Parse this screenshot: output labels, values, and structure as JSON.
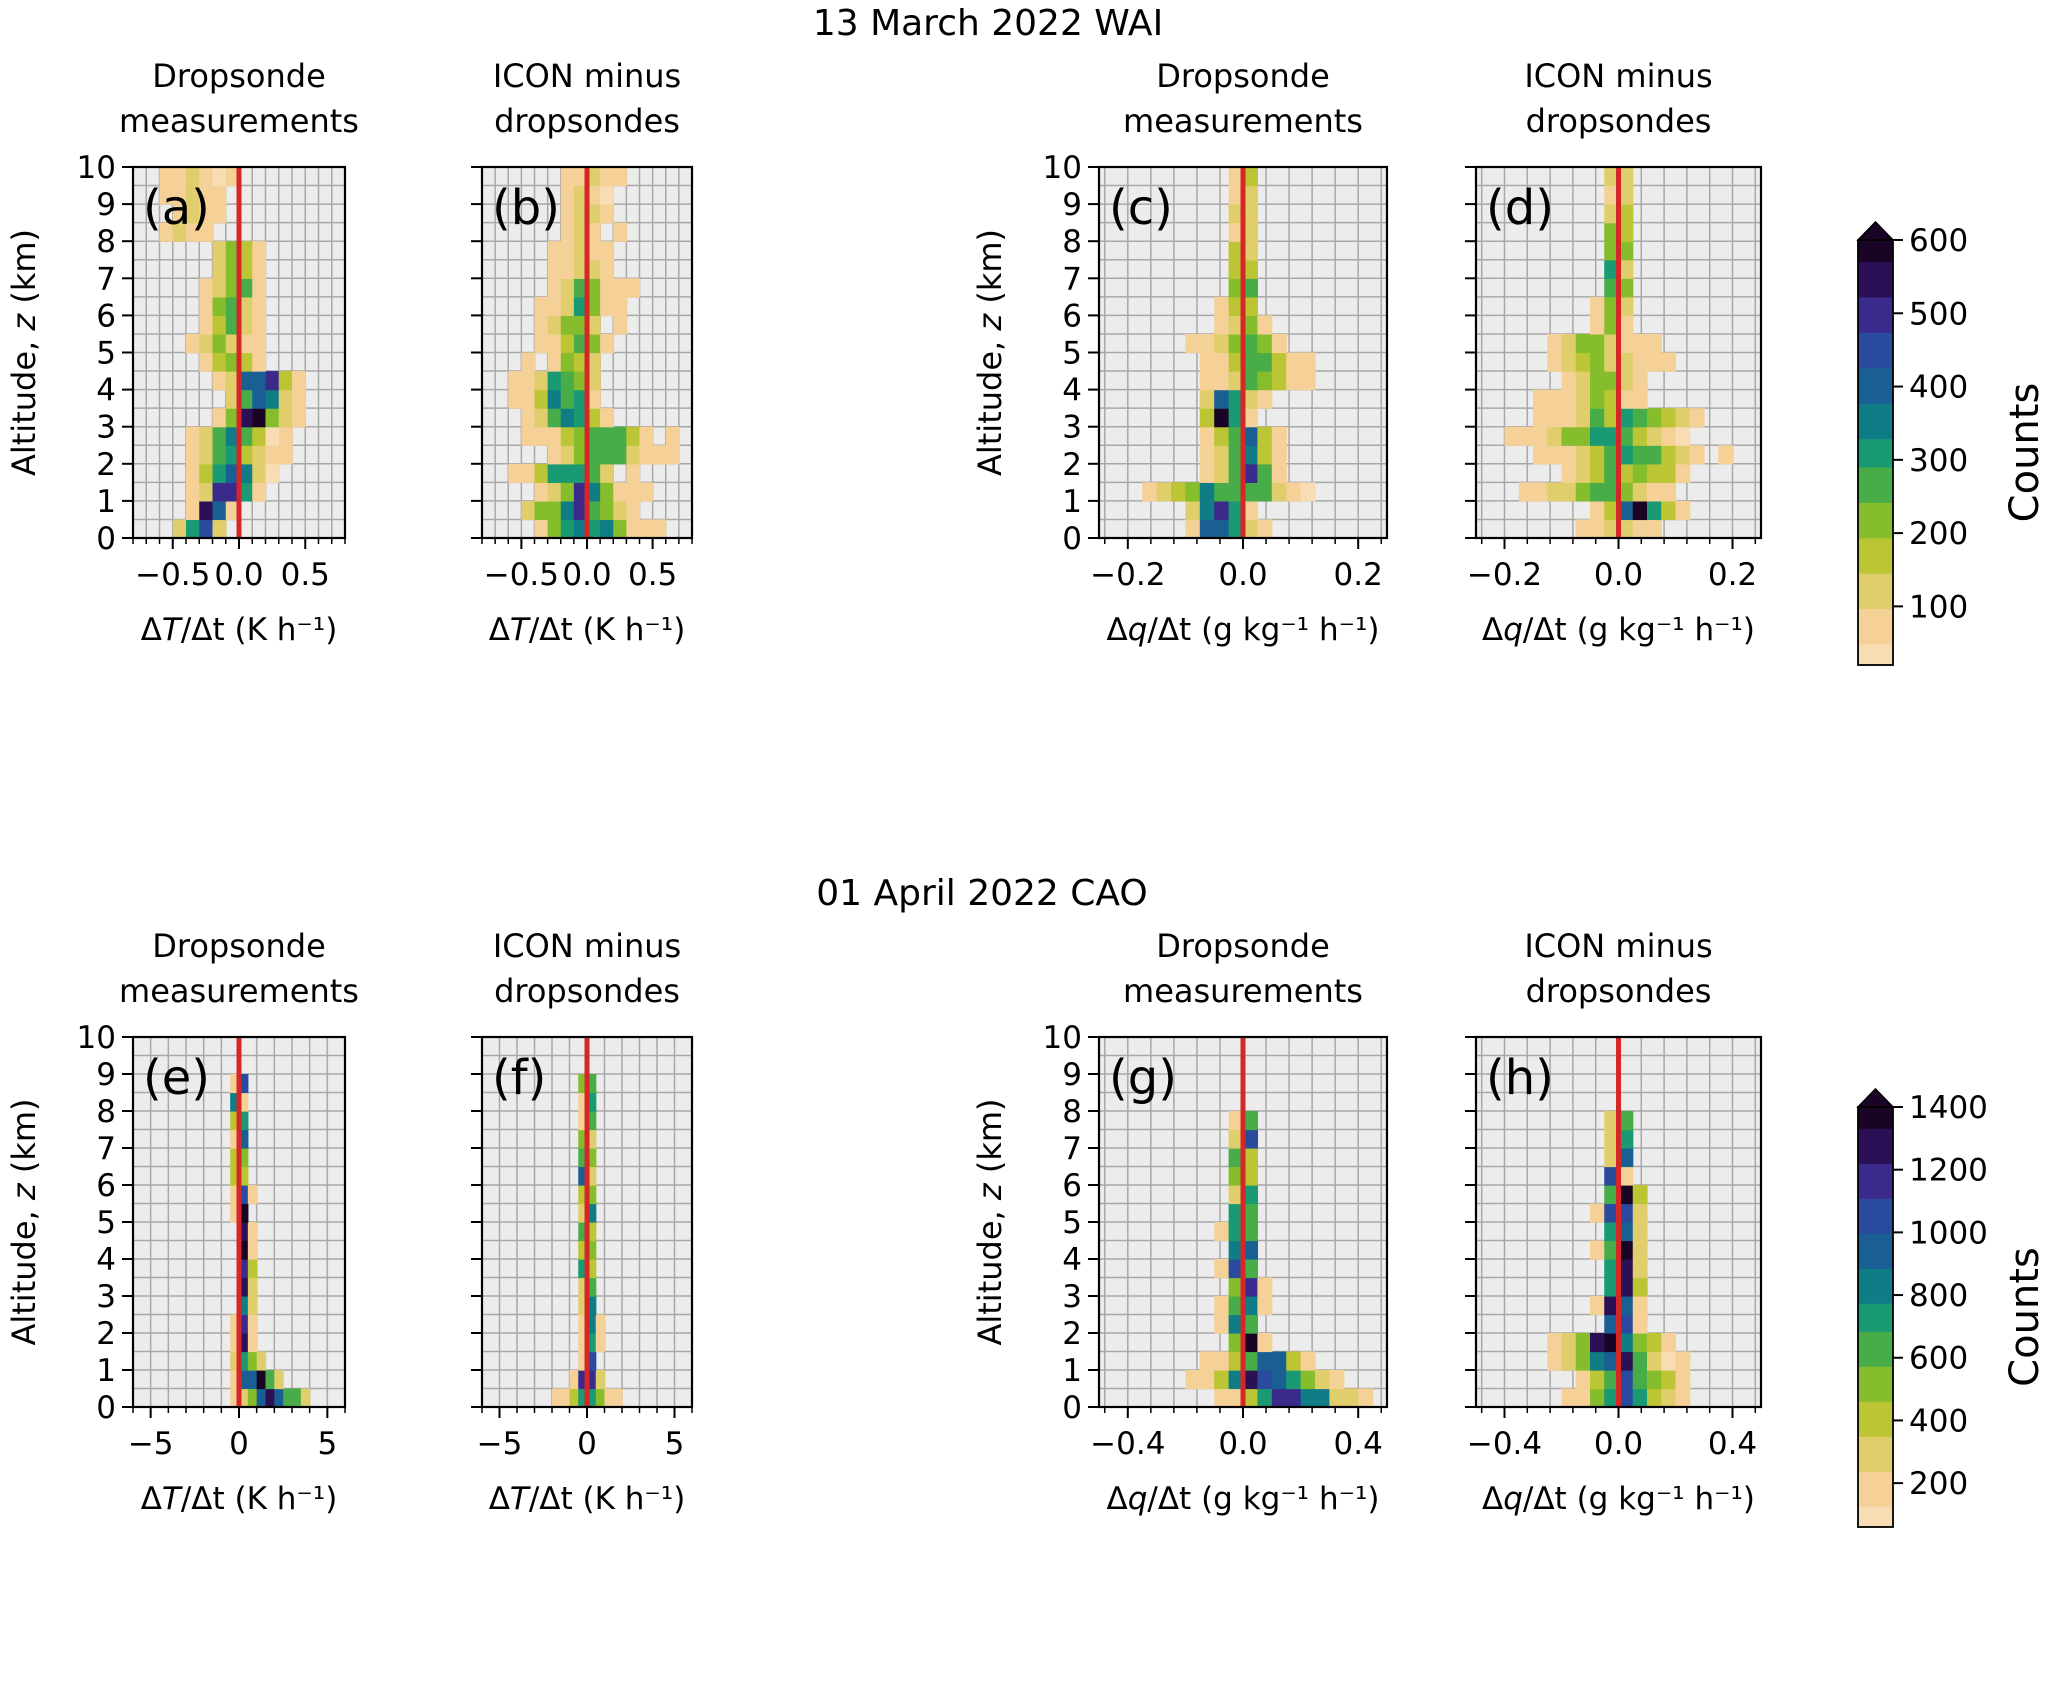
{
  "figure": {
    "row_titles": [
      "13 March 2022 WAI",
      "01 April 2022 CAO"
    ],
    "colorbar_label": "Counts",
    "ylabel_prefix": "Altitude, ",
    "ylabel_var": "z",
    "ylabel_unit": " (km)"
  },
  "colors": {
    "zero_line": "#d62728",
    "axes_bg": "#ececec",
    "grid": "#a8a8a8",
    "colormap": [
      "#f8dcb4",
      "#f5d197",
      "#e0cd6b",
      "#bcc533",
      "#86bd2c",
      "#48ad48",
      "#199a72",
      "#0f7c86",
      "#1a5f94",
      "#2a4a9e",
      "#3a2a8c",
      "#2b1055",
      "#1a0426"
    ]
  },
  "chart_data": [
    {
      "panel": "(a)",
      "type": "heatmap",
      "title": [
        "Dropsonde",
        "measurements"
      ],
      "xlabel": "ΔT/Δt (K h⁻¹)",
      "ylabel": "Altitude, z (km)",
      "xlim": [
        -0.8,
        0.8
      ],
      "ylim": [
        0,
        10
      ],
      "xticks": [
        -0.5,
        0.0,
        0.5
      ],
      "xtick_labels": [
        "−0.5",
        "0.0",
        "0.5"
      ],
      "yticks": [
        0,
        1,
        2,
        3,
        4,
        5,
        6,
        7,
        8,
        9,
        10
      ],
      "ytick_labels": [
        "0",
        "1",
        "2",
        "3",
        "4",
        "5",
        "6",
        "7",
        "8",
        "9",
        "10"
      ],
      "bin_width": 0.1,
      "bin_height": 0.5,
      "vmax": 600,
      "seed": 3,
      "profile": [
        {
          "z": [
            0.0,
            0.5
          ],
          "center": -0.25,
          "width": 0.5,
          "peak": 520,
          "spread": 0.35
        },
        {
          "z": [
            0.5,
            1.0
          ],
          "center": -0.2,
          "width": 0.4,
          "peak": 600,
          "spread": 0.35
        },
        {
          "z": [
            1.0,
            2.0
          ],
          "center": -0.1,
          "width": 0.7,
          "peak": 520,
          "spread": 0.35
        },
        {
          "z": [
            2.0,
            3.0
          ],
          "center": -0.05,
          "width": 0.8,
          "peak": 380,
          "spread": 0.35
        },
        {
          "z": [
            3.0,
            4.5
          ],
          "center": 0.1,
          "width": 0.7,
          "peak": 600,
          "spread": 0.35
        },
        {
          "z": [
            4.5,
            6.5
          ],
          "center": -0.1,
          "width": 0.6,
          "peak": 250,
          "spread": 0.35
        },
        {
          "z": [
            6.5,
            8.0
          ],
          "center": 0.0,
          "width": 0.5,
          "peak": 380,
          "spread": 0.35
        },
        {
          "z": [
            8.0,
            10.0
          ],
          "center": -0.35,
          "width": 0.6,
          "peak": 90,
          "spread": 0.35
        }
      ]
    },
    {
      "panel": "(b)",
      "type": "heatmap",
      "title": [
        "ICON minus",
        "dropsondes"
      ],
      "xlabel": "ΔT/Δt (K h⁻¹)",
      "ylabel": "",
      "xlim": [
        -0.8,
        0.8
      ],
      "ylim": [
        0,
        10
      ],
      "xticks": [
        -0.5,
        0.0,
        0.5
      ],
      "xtick_labels": [
        "−0.5",
        "0.0",
        "0.5"
      ],
      "yticks": [
        0,
        1,
        2,
        3,
        4,
        5,
        6,
        7,
        8,
        9,
        10
      ],
      "ytick_labels": [],
      "bin_width": 0.1,
      "bin_height": 0.5,
      "vmax": 600,
      "seed": 7,
      "profile": [
        {
          "z": [
            0.0,
            1.0
          ],
          "center": 0.0,
          "width": 1.1,
          "peak": 450,
          "spread": 0.35
        },
        {
          "z": [
            1.0,
            2.0
          ],
          "center": -0.1,
          "width": 0.9,
          "peak": 500,
          "spread": 0.35
        },
        {
          "z": [
            2.0,
            3.0
          ],
          "center": 0.0,
          "width": 1.1,
          "peak": 350,
          "spread": 0.35
        },
        {
          "z": [
            3.0,
            4.5
          ],
          "center": -0.1,
          "width": 0.8,
          "peak": 400,
          "spread": 0.35
        },
        {
          "z": [
            4.5,
            7.0
          ],
          "center": -0.05,
          "width": 0.7,
          "peak": 250,
          "spread": 0.35
        },
        {
          "z": [
            7.0,
            10.0
          ],
          "center": 0.0,
          "width": 0.6,
          "peak": 120,
          "spread": 0.35
        }
      ]
    },
    {
      "panel": "(c)",
      "type": "heatmap",
      "title": [
        "Dropsonde",
        "measurements"
      ],
      "xlabel": "Δq/Δt (g kg⁻¹ h⁻¹)",
      "ylabel": "Altitude, z (km)",
      "xlim": [
        -0.25,
        0.25
      ],
      "ylim": [
        0,
        10
      ],
      "xticks": [
        -0.2,
        0.0,
        0.2
      ],
      "xtick_labels": [
        "−0.2",
        "0.0",
        "0.2"
      ],
      "yticks": [
        0,
        1,
        2,
        3,
        4,
        5,
        6,
        7,
        8,
        9,
        10
      ],
      "ytick_labels": [
        "0",
        "1",
        "2",
        "3",
        "4",
        "5",
        "6",
        "7",
        "8",
        "9",
        "10"
      ],
      "bin_width": 0.025,
      "bin_height": 0.5,
      "vmax": 600,
      "seed": 11,
      "profile": [
        {
          "z": [
            0.0,
            1.0
          ],
          "center": -0.05,
          "width": 0.15,
          "peak": 600,
          "spread": 0.35
        },
        {
          "z": [
            1.0,
            1.5
          ],
          "center": -0.05,
          "width": 0.35,
          "peak": 400,
          "spread": 0.35
        },
        {
          "z": [
            1.5,
            3.0
          ],
          "center": 0.0,
          "width": 0.15,
          "peak": 450,
          "spread": 0.35
        },
        {
          "z": [
            3.0,
            4.0
          ],
          "center": -0.02,
          "width": 0.12,
          "peak": 600,
          "spread": 0.35
        },
        {
          "z": [
            4.0,
            5.5
          ],
          "center": 0.02,
          "width": 0.2,
          "peak": 300,
          "spread": 0.35
        },
        {
          "z": [
            5.5,
            6.5
          ],
          "center": 0.0,
          "width": 0.1,
          "peak": 250,
          "spread": 0.35
        },
        {
          "z": [
            6.5,
            8.0
          ],
          "center": 0.0,
          "width": 0.02,
          "peak": 600,
          "spread": 0.35
        },
        {
          "z": [
            8.0,
            10.0
          ],
          "center": 0.0,
          "width": 0.02,
          "peak": 300,
          "spread": 0.35
        }
      ]
    },
    {
      "panel": "(d)",
      "type": "heatmap",
      "title": [
        "ICON minus",
        "dropsondes"
      ],
      "xlabel": "Δq/Δt (g kg⁻¹ h⁻¹)",
      "ylabel": "",
      "xlim": [
        -0.25,
        0.25
      ],
      "ylim": [
        0,
        10
      ],
      "xticks": [
        -0.2,
        0.0,
        0.2
      ],
      "xtick_labels": [
        "−0.2",
        "0.0",
        "0.2"
      ],
      "yticks": [
        0,
        1,
        2,
        3,
        4,
        5,
        6,
        7,
        8,
        9,
        10
      ],
      "ytick_labels": [],
      "bin_width": 0.025,
      "bin_height": 0.5,
      "vmax": 600,
      "seed": 13,
      "profile": [
        {
          "z": [
            0.0,
            0.5
          ],
          "center": 0.0,
          "width": 0.2,
          "peak": 150,
          "spread": 0.35
        },
        {
          "z": [
            0.5,
            1.0
          ],
          "center": 0.03,
          "width": 0.2,
          "peak": 600,
          "spread": 0.35
        },
        {
          "z": [
            1.0,
            2.0
          ],
          "center": 0.0,
          "width": 0.3,
          "peak": 300,
          "spread": 0.35
        },
        {
          "z": [
            2.0,
            3.5
          ],
          "center": 0.0,
          "width": 0.35,
          "peak": 300,
          "spread": 0.35
        },
        {
          "z": [
            3.5,
            5.5
          ],
          "center": -0.02,
          "width": 0.25,
          "peak": 200,
          "spread": 0.35
        },
        {
          "z": [
            5.5,
            6.5
          ],
          "center": 0.0,
          "width": 0.1,
          "peak": 200,
          "spread": 0.35
        },
        {
          "z": [
            6.5,
            8.5
          ],
          "center": 0.0,
          "width": 0.02,
          "peak": 600,
          "spread": 0.35
        },
        {
          "z": [
            8.5,
            10.0
          ],
          "center": 0.0,
          "width": 0.02,
          "peak": 300,
          "spread": 0.35
        }
      ]
    },
    {
      "panel": "(e)",
      "type": "heatmap",
      "title": [
        "Dropsonde",
        "measurements"
      ],
      "xlabel": "ΔT/Δt (K h⁻¹)",
      "ylabel": "Altitude, z (km)",
      "xlim": [
        -6,
        6
      ],
      "ylim": [
        0,
        10
      ],
      "xticks": [
        -5,
        0,
        5
      ],
      "xtick_labels": [
        "−5",
        "0",
        "5"
      ],
      "yticks": [
        0,
        1,
        2,
        3,
        4,
        5,
        6,
        7,
        8,
        9,
        10
      ],
      "ytick_labels": [
        "0",
        "1",
        "2",
        "3",
        "4",
        "5",
        "6",
        "7",
        "8",
        "9",
        "10"
      ],
      "bin_width": 0.5,
      "bin_height": 0.5,
      "vmax": 1400,
      "seed": 17,
      "profile": [
        {
          "z": [
            0.0,
            0.5
          ],
          "center": 1.5,
          "width": 5.5,
          "peak": 1400,
          "spread": 0.35
        },
        {
          "z": [
            0.5,
            1.0
          ],
          "center": 0.8,
          "width": 4.0,
          "peak": 1400,
          "spread": 0.35
        },
        {
          "z": [
            1.0,
            1.5
          ],
          "center": 0.3,
          "width": 2.5,
          "peak": 1000,
          "spread": 0.35
        },
        {
          "z": [
            1.5,
            6.0
          ],
          "center": 0.3,
          "width": 1.2,
          "peak": 1400,
          "spread": 0.35
        },
        {
          "z": [
            6.0,
            9.0
          ],
          "center": 0.0,
          "width": 1.0,
          "peak": 1400,
          "spread": 0.35
        }
      ]
    },
    {
      "panel": "(f)",
      "type": "heatmap",
      "title": [
        "ICON minus",
        "dropsondes"
      ],
      "xlabel": "ΔT/Δt (K h⁻¹)",
      "ylabel": "",
      "xlim": [
        -6,
        6
      ],
      "ylim": [
        0,
        10
      ],
      "xticks": [
        -5,
        0,
        5
      ],
      "xtick_labels": [
        "−5",
        "0",
        "5"
      ],
      "yticks": [
        0,
        1,
        2,
        3,
        4,
        5,
        6,
        7,
        8,
        9,
        10
      ],
      "ytick_labels": [],
      "bin_width": 0.5,
      "bin_height": 0.5,
      "vmax": 1400,
      "seed": 19,
      "profile": [
        {
          "z": [
            0.0,
            0.5
          ],
          "center": 0.0,
          "width": 4.0,
          "peak": 1000,
          "spread": 0.35
        },
        {
          "z": [
            0.5,
            1.0
          ],
          "center": 0.0,
          "width": 2.0,
          "peak": 1400,
          "spread": 0.35
        },
        {
          "z": [
            1.0,
            2.5
          ],
          "center": 0.2,
          "width": 1.2,
          "peak": 1400,
          "spread": 0.35
        },
        {
          "z": [
            2.5,
            9.0
          ],
          "center": 0.0,
          "width": 1.0,
          "peak": 1400,
          "spread": 0.35
        }
      ]
    },
    {
      "panel": "(g)",
      "type": "heatmap",
      "title": [
        "Dropsonde",
        "measurements"
      ],
      "xlabel": "Δq/Δt (g kg⁻¹ h⁻¹)",
      "ylabel": "Altitude, z (km)",
      "xlim": [
        -0.5,
        0.5
      ],
      "ylim": [
        0,
        10
      ],
      "xticks": [
        -0.4,
        0.0,
        0.4
      ],
      "xtick_labels": [
        "−0.4",
        "0.0",
        "0.4"
      ],
      "yticks": [
        0,
        1,
        2,
        3,
        4,
        5,
        6,
        7,
        8,
        9,
        10
      ],
      "ytick_labels": [
        "0",
        "1",
        "2",
        "3",
        "4",
        "5",
        "6",
        "7",
        "8",
        "9",
        "10"
      ],
      "bin_width": 0.05,
      "bin_height": 0.5,
      "vmax": 1400,
      "seed": 23,
      "profile": [
        {
          "z": [
            0.0,
            1.0
          ],
          "center": 0.13,
          "width": 0.55,
          "peak": 1400,
          "spread": 0.35
        },
        {
          "z": [
            1.0,
            1.5
          ],
          "center": 0.1,
          "width": 0.45,
          "peak": 1000,
          "spread": 0.35
        },
        {
          "z": [
            1.5,
            5.5
          ],
          "center": 0.0,
          "width": 0.15,
          "peak": 1400,
          "spread": 0.35
        },
        {
          "z": [
            5.5,
            8.0
          ],
          "center": 0.0,
          "width": 0.1,
          "peak": 1400,
          "spread": 0.35
        }
      ]
    },
    {
      "panel": "(h)",
      "type": "heatmap",
      "title": [
        "ICON minus",
        "dropsondes"
      ],
      "xlabel": "Δq/Δt (g kg⁻¹ h⁻¹)",
      "ylabel": "",
      "xlim": [
        -0.5,
        0.5
      ],
      "ylim": [
        0,
        10
      ],
      "xticks": [
        -0.4,
        0.0,
        0.4
      ],
      "xtick_labels": [
        "−0.4",
        "0.0",
        "0.4"
      ],
      "yticks": [
        0,
        1,
        2,
        3,
        4,
        5,
        6,
        7,
        8,
        9,
        10
      ],
      "ytick_labels": [],
      "bin_width": 0.05,
      "bin_height": 0.5,
      "vmax": 1400,
      "seed": 29,
      "profile": [
        {
          "z": [
            0.0,
            1.0
          ],
          "center": 0.0,
          "width": 0.5,
          "peak": 1000,
          "spread": 0.35
        },
        {
          "z": [
            1.0,
            2.0
          ],
          "center": -0.05,
          "width": 0.5,
          "peak": 1400,
          "spread": 0.35
        },
        {
          "z": [
            2.0,
            6.0
          ],
          "center": 0.0,
          "width": 0.2,
          "peak": 1400,
          "spread": 0.35
        },
        {
          "z": [
            6.0,
            8.0
          ],
          "center": 0.0,
          "width": 0.1,
          "peak": 1400,
          "spread": 0.35
        }
      ]
    }
  ],
  "colorbars": [
    {
      "row": 0,
      "vmin": 20,
      "vmax": 600,
      "ticks": [
        100,
        200,
        300,
        400,
        500,
        600
      ],
      "tick_labels": [
        "100",
        "200",
        "300",
        "400",
        "500",
        "600"
      ],
      "label": "Counts",
      "extend": "max"
    },
    {
      "row": 1,
      "vmin": 60,
      "vmax": 1400,
      "ticks": [
        200,
        400,
        600,
        800,
        1000,
        1200,
        1400
      ],
      "tick_labels": [
        "200",
        "400",
        "600",
        "800",
        "1000",
        "1200",
        "1400"
      ],
      "label": "Counts",
      "extend": "max"
    }
  ]
}
